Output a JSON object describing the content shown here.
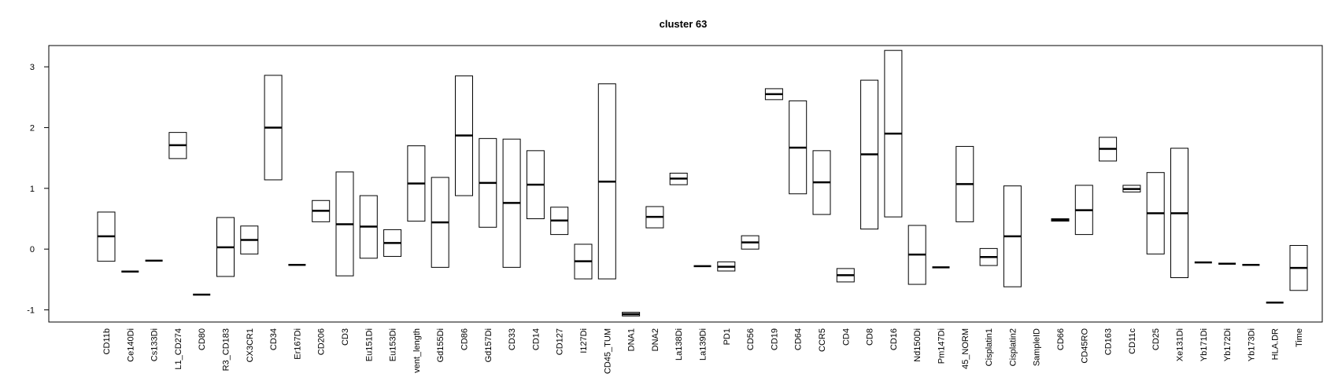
{
  "chart_data": {
    "type": "boxplot",
    "title": "cluster 63",
    "xlabel": "",
    "ylabel": "",
    "ylim": [
      -1.2,
      3.35
    ],
    "yticks": [
      -1,
      0,
      1,
      2,
      3
    ],
    "ytick_labels": [
      "-1",
      "0",
      "1",
      "2",
      "3"
    ],
    "categories": [
      "CD11b",
      "Ce140Di",
      "Cs133Di",
      "L1_CD274",
      "CD80",
      "R3_CD183",
      "CX3CR1",
      "CD34",
      "Er167Di",
      "CD206",
      "CD3",
      "Eu151Di",
      "Eu153Di",
      "vent_length",
      "Gd155Di",
      "CD86",
      "Gd157Di",
      "CD33",
      "CD14",
      "CD127",
      "I127Di",
      "CD45_TUM",
      "DNA1",
      "DNA2",
      "La138Di",
      "La139Di",
      "PD1",
      "CD56",
      "CD19",
      "CD64",
      "CCR5",
      "CD4",
      "CD8",
      "CD16",
      "Nd150Di",
      "Pm147Di",
      "45_NORM",
      "Cisplatin1",
      "Cisplatin2",
      "SampleID",
      "CD66",
      "CD45RO",
      "CD163",
      "CD11c",
      "CD25",
      "Xe131Di",
      "Yb171Di",
      "Yb172Di",
      "Yb173Di",
      "HLA.DR",
      "Time"
    ],
    "boxes": [
      {
        "q1": -0.2,
        "median": 0.21,
        "q3": 0.61
      },
      {
        "q1": -0.37,
        "median": -0.37,
        "q3": -0.37
      },
      {
        "q1": -0.19,
        "median": -0.19,
        "q3": -0.19
      },
      {
        "q1": 1.49,
        "median": 1.71,
        "q3": 1.92
      },
      {
        "q1": -0.75,
        "median": -0.75,
        "q3": -0.75
      },
      {
        "q1": -0.45,
        "median": 0.03,
        "q3": 0.52
      },
      {
        "q1": -0.08,
        "median": 0.15,
        "q3": 0.38
      },
      {
        "q1": 1.14,
        "median": 2.0,
        "q3": 2.86
      },
      {
        "q1": -0.26,
        "median": -0.26,
        "q3": -0.26
      },
      {
        "q1": 0.45,
        "median": 0.63,
        "q3": 0.8
      },
      {
        "q1": -0.44,
        "median": 0.41,
        "q3": 1.27
      },
      {
        "q1": -0.15,
        "median": 0.37,
        "q3": 0.88
      },
      {
        "q1": -0.12,
        "median": 0.1,
        "q3": 0.32
      },
      {
        "q1": 0.46,
        "median": 1.08,
        "q3": 1.7
      },
      {
        "q1": -0.3,
        "median": 0.44,
        "q3": 1.18
      },
      {
        "q1": 0.88,
        "median": 1.87,
        "q3": 2.85
      },
      {
        "q1": 0.36,
        "median": 1.09,
        "q3": 1.82
      },
      {
        "q1": -0.3,
        "median": 0.76,
        "q3": 1.81
      },
      {
        "q1": 0.5,
        "median": 1.06,
        "q3": 1.62
      },
      {
        "q1": 0.24,
        "median": 0.47,
        "q3": 0.69
      },
      {
        "q1": -0.49,
        "median": -0.2,
        "q3": 0.08
      },
      {
        "q1": -0.49,
        "median": 1.11,
        "q3": 2.72
      },
      {
        "q1": -1.1,
        "median": -1.07,
        "q3": -1.04
      },
      {
        "q1": 0.35,
        "median": 0.53,
        "q3": 0.7
      },
      {
        "q1": 1.06,
        "median": 1.16,
        "q3": 1.25
      },
      {
        "q1": -0.28,
        "median": -0.28,
        "q3": -0.28
      },
      {
        "q1": -0.36,
        "median": -0.29,
        "q3": -0.21
      },
      {
        "q1": 0.0,
        "median": 0.11,
        "q3": 0.22
      },
      {
        "q1": 2.46,
        "median": 2.55,
        "q3": 2.64
      },
      {
        "q1": 0.91,
        "median": 1.67,
        "q3": 2.44
      },
      {
        "q1": 0.57,
        "median": 1.1,
        "q3": 1.62
      },
      {
        "q1": -0.54,
        "median": -0.43,
        "q3": -0.32
      },
      {
        "q1": 0.33,
        "median": 1.56,
        "q3": 2.78
      },
      {
        "q1": 0.53,
        "median": 1.9,
        "q3": 3.27
      },
      {
        "q1": -0.58,
        "median": -0.09,
        "q3": 0.39
      },
      {
        "q1": -0.3,
        "median": -0.3,
        "q3": -0.3
      },
      {
        "q1": 0.45,
        "median": 1.07,
        "q3": 1.69
      },
      {
        "q1": -0.27,
        "median": -0.13,
        "q3": 0.01
      },
      {
        "q1": -0.62,
        "median": 0.21,
        "q3": 1.04
      },
      null,
      {
        "q1": 0.46,
        "median": 0.48,
        "q3": 0.5
      },
      {
        "q1": 0.24,
        "median": 0.64,
        "q3": 1.05
      },
      {
        "q1": 1.45,
        "median": 1.65,
        "q3": 1.84
      },
      {
        "q1": 0.94,
        "median": 0.99,
        "q3": 1.05
      },
      {
        "q1": -0.08,
        "median": 0.59,
        "q3": 1.26
      },
      {
        "q1": -0.47,
        "median": 0.59,
        "q3": 1.66
      },
      {
        "q1": -0.22,
        "median": -0.22,
        "q3": -0.22
      },
      {
        "q1": -0.24,
        "median": -0.24,
        "q3": -0.24
      },
      {
        "q1": -0.26,
        "median": -0.26,
        "q3": -0.26
      },
      {
        "q1": -0.88,
        "median": -0.88,
        "q3": -0.88
      },
      {
        "q1": -0.68,
        "median": -0.31,
        "q3": 0.06
      }
    ],
    "grid": false,
    "legend": "none"
  }
}
